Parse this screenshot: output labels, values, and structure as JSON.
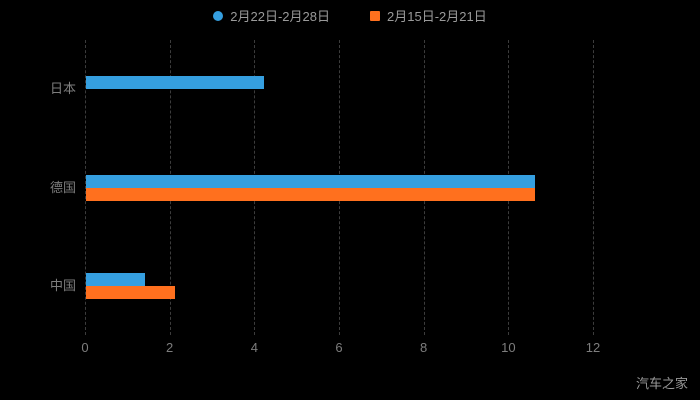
{
  "legend": {
    "items": [
      {
        "label": "2月22日-2月28日",
        "color": "#359fe0",
        "shape": "circle"
      },
      {
        "label": "2月15日-2月21日",
        "color": "#ff701e",
        "shape": "square"
      }
    ]
  },
  "watermark": "汽车之家",
  "chart_data": {
    "type": "bar",
    "orientation": "horizontal",
    "title": "",
    "categories": [
      "日本",
      "德国",
      "中国"
    ],
    "series": [
      {
        "name": "2月22日-2月28日",
        "color": "#359fe0",
        "values": [
          4.2,
          10.6,
          1.4
        ]
      },
      {
        "name": "2月15日-2月21日",
        "color": "#ff701e",
        "values": [
          0,
          10.6,
          2.1
        ]
      }
    ],
    "xticks": [
      0,
      2,
      4,
      6,
      8,
      10,
      12
    ],
    "xlim": [
      0,
      12
    ],
    "grid": "dashed-vertical",
    "legend_position": "top",
    "background": "#000000"
  }
}
